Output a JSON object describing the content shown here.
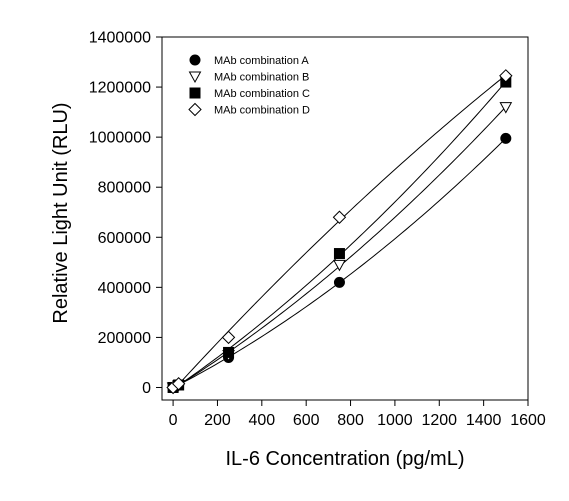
{
  "chart_data": {
    "type": "scatter",
    "title": "",
    "xlabel": "IL-6 Concentration (pg/mL)",
    "ylabel": "Relative Light Unit (RLU)",
    "xlim": [
      -50,
      1600
    ],
    "ylim": [
      -50000,
      1400000
    ],
    "xticks": [
      0,
      200,
      400,
      600,
      800,
      1000,
      1200,
      1400,
      1600
    ],
    "xtick_labels": [
      "0",
      "200",
      "400",
      "600",
      "800",
      "1000",
      "1200",
      "1400",
      "1600"
    ],
    "yticks": [
      0,
      200000,
      400000,
      600000,
      800000,
      1000000,
      1200000,
      1400000
    ],
    "ytick_labels": [
      "0",
      "200000",
      "400000",
      "600000",
      "800000",
      "1000000",
      "1200000",
      "1400000"
    ],
    "grid": false,
    "legend_position": "top-left",
    "fit_lines": true,
    "series": [
      {
        "name": "MAb combination A",
        "marker": "filled-circle",
        "color": "#000000",
        "x": [
          0,
          25,
          250,
          750,
          1500
        ],
        "y": [
          0,
          10000,
          120000,
          420000,
          995000
        ]
      },
      {
        "name": "MAb combination B",
        "marker": "open-triangle-down",
        "color": "#000000",
        "x": [
          0,
          25,
          250,
          750,
          1500
        ],
        "y": [
          0,
          10000,
          130000,
          490000,
          1120000
        ]
      },
      {
        "name": "MAb combination C",
        "marker": "filled-square",
        "color": "#000000",
        "x": [
          0,
          25,
          250,
          750,
          1500
        ],
        "y": [
          0,
          10000,
          140000,
          535000,
          1220000
        ]
      },
      {
        "name": "MAb combination D",
        "marker": "open-diamond",
        "color": "#000000",
        "x": [
          0,
          25,
          250,
          750,
          1500
        ],
        "y": [
          0,
          15000,
          200000,
          680000,
          1245000
        ]
      }
    ]
  }
}
